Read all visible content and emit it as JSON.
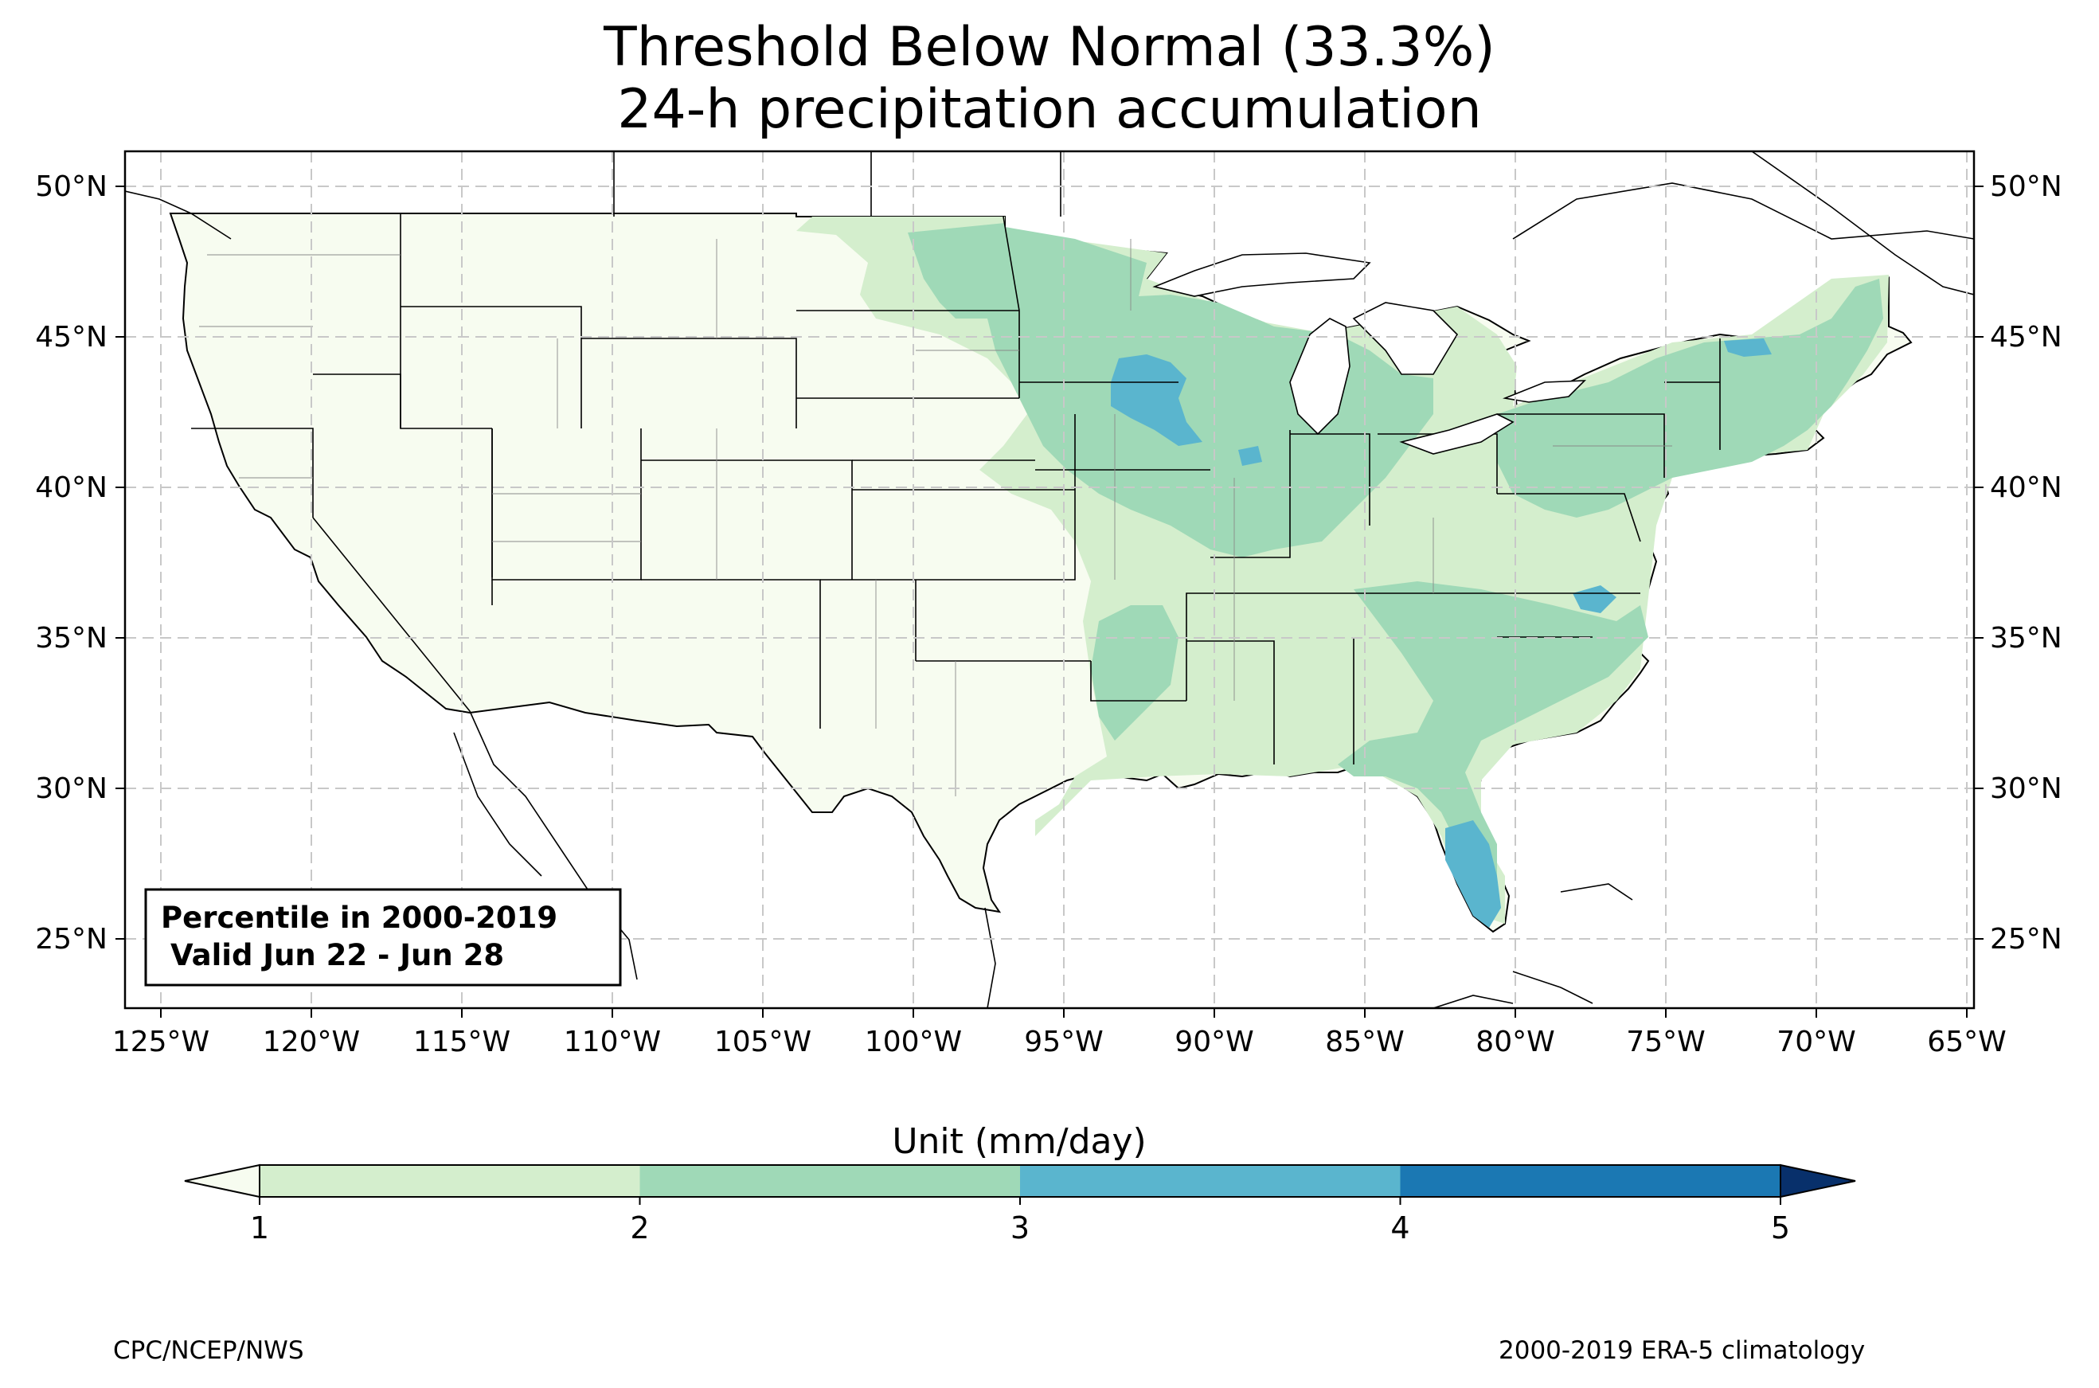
{
  "title": {
    "line1": "Threshold Below Normal (33.3%)",
    "line2": "24-h precipitation accumulation"
  },
  "map": {
    "lon_ticks": [
      "125°W",
      "120°W",
      "115°W",
      "110°W",
      "105°W",
      "100°W",
      "95°W",
      "90°W",
      "85°W",
      "80°W",
      "75°W",
      "70°W",
      "65°W"
    ],
    "lat_ticks": [
      "50°N",
      "45°N",
      "40°N",
      "35°N",
      "30°N",
      "25°N"
    ],
    "lon_range": [
      -126.2,
      -64.8
    ],
    "lat_range": [
      22.8,
      51.2
    ],
    "info_box": {
      "line1": "Percentile in 2000-2019",
      "line2": "Valid Jun 22 - Jun 28"
    },
    "grid": true
  },
  "colorbar": {
    "label": "Unit (mm/day)",
    "ticks": [
      "1",
      "2",
      "3",
      "4",
      "5"
    ],
    "levels": [
      1,
      2,
      3,
      4,
      5
    ],
    "colors": [
      "#f7fcf0",
      "#d4eecd",
      "#9fd9b7",
      "#5ab5ce",
      "#1b78b3",
      "#08306b"
    ],
    "extend": "both"
  },
  "footer": {
    "left": "CPC/NCEP/NWS",
    "right": "2000-2019 ERA-5 climatology"
  }
}
